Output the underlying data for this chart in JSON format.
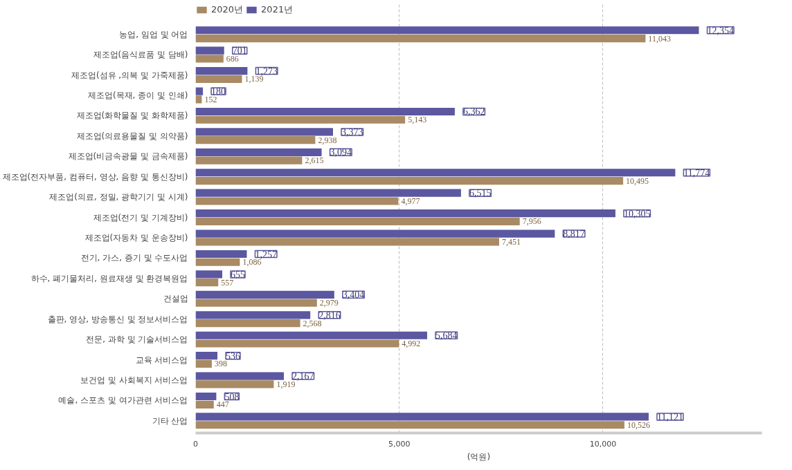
{
  "chart_data": {
    "type": "bar",
    "orientation": "horizontal",
    "xlabel": "(억원)",
    "categories": [
      "농업, 임업 및 어업",
      "제조업(음식료품 및 담배)",
      "제조업(섬유 ,의복 및 가죽제품)",
      "제조업(목재, 종이 및 인쇄)",
      "제조업(화학물질 및 화학제품)",
      "제조업(의료용물질 및 의약품)",
      "제조업(비금속광물 및 금속제품)",
      "제조업(전자부품, 컴퓨터, 영상, 음향 및 통신장비)",
      "제조업(의료, 정밀, 광학기기 및 시계)",
      "제조업(전기 및 기계장비)",
      "제조업(자동차 및 운송장비)",
      "전기, 가스, 증기 및 수도사업",
      "하수, 폐기물처리, 원료재생 및 환경복원업",
      "건설업",
      "출판, 영상, 방송통신 및 정보서비스업",
      "전문, 과학 및 기술서비스업",
      "교육 서비스업",
      "보건업 및 사회복지 서비스업",
      "예술, 스포츠 및 여가관련 서비스업",
      "기타 산업"
    ],
    "series": [
      {
        "name": "2021년",
        "color": "#5b57a0",
        "values": [
          12354,
          701,
          1273,
          180,
          6362,
          3373,
          3094,
          11774,
          6515,
          10305,
          8817,
          1257,
          655,
          3404,
          2816,
          5684,
          536,
          2167,
          508,
          11121
        ],
        "value_labels": [
          "12,354",
          "701",
          "1,273",
          "180",
          "6,362",
          "3,373",
          "3,094",
          "11,774",
          "6,515",
          "10,305",
          "8,817",
          "1,257",
          "655",
          "3,404",
          "2,816",
          "5,684",
          "536",
          "2,167",
          "508",
          "11,121"
        ]
      },
      {
        "name": "2020년",
        "color": "#a88a64",
        "values": [
          11043,
          686,
          1139,
          152,
          5143,
          2938,
          2615,
          10495,
          4977,
          7956,
          7451,
          1086,
          557,
          2979,
          2568,
          4992,
          398,
          1919,
          447,
          10526
        ],
        "value_labels": [
          "11,043",
          "686",
          "1,139",
          "152",
          "5,143",
          "2,938",
          "2,615",
          "10,495",
          "4,977",
          "7,956",
          "7,451",
          "1,086",
          "557",
          "2,979",
          "2,568",
          "4,992",
          "398",
          "1,919",
          "447",
          "10,526"
        ]
      }
    ],
    "xlim": [
      0,
      13900
    ],
    "xticks": [
      0,
      {
        "value": 5000,
        "label": "5,000"
      },
      {
        "value": 10000,
        "label": "10,000"
      }
    ],
    "grid": "x",
    "legend": "top left"
  }
}
